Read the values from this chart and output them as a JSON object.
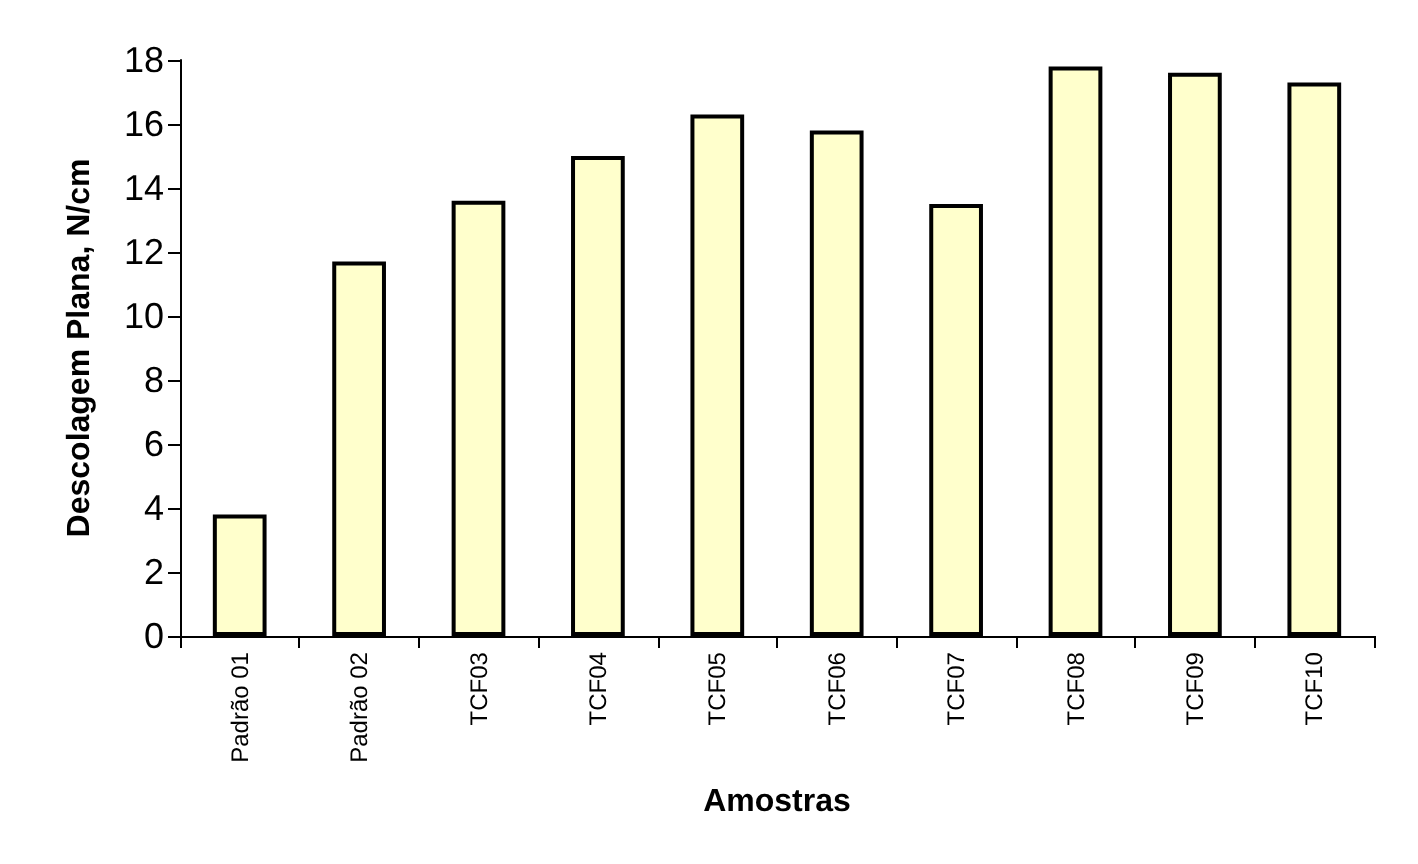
{
  "chart_data": {
    "type": "bar",
    "xlabel": "Amostras",
    "ylabel": "Descolagem Plana, N/cm",
    "categories": [
      "Padrão 01",
      "Padrão 02",
      "TCF03",
      "TCF04",
      "TCF05",
      "TCF06",
      "TCF07",
      "TCF08",
      "TCF09",
      "TCF10"
    ],
    "values": [
      3.8,
      11.7,
      13.6,
      15.0,
      16.3,
      15.8,
      13.5,
      17.8,
      17.6,
      17.3
    ],
    "color": "#ffffcc",
    "ylim": [
      0,
      18
    ],
    "yticks": [
      0,
      2,
      4,
      6,
      8,
      10,
      12,
      14,
      16,
      18
    ],
    "grid": false
  }
}
